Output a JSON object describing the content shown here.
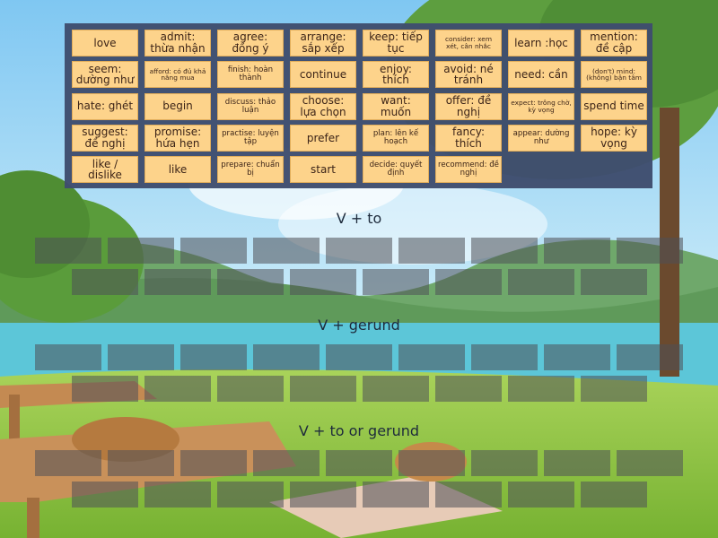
{
  "tiles": [
    "love",
    "admit: thừa nhận",
    "agree: đồng ý",
    "arrange: sắp xếp",
    "keep: tiếp tục",
    "consider: xem xét, cân nhắc",
    "learn :học",
    "mention: đề cập",
    "seem: dường như",
    "afford: có đủ khả năng mua",
    "finish: hoàn thành",
    "continue",
    "enjoy: thích",
    "avoid: né tránh",
    "need: cần",
    "(don't) mind: (không) bận tâm",
    "hate: ghét",
    "begin",
    "discuss: thảo luận",
    "choose: lựa chọn",
    "want: muốn",
    "offer: đề nghị",
    "expect: trông chờ, kỳ vọng",
    "spend time",
    "suggest: đề nghị",
    "promise: hứa hẹn",
    "practise: luyện tập",
    "prefer",
    "plan: lên kế hoạch",
    "fancy: thích",
    "appear: dường như",
    "hope: kỳ vọng",
    "like / dislike",
    "like",
    "prepare: chuẩn bị",
    "start",
    "decide: quyết định",
    "recommend: đề nghị"
  ],
  "groups": [
    {
      "heading": "V + to"
    },
    {
      "heading": "V + gerund"
    },
    {
      "heading": "V + to or gerund"
    }
  ],
  "colors": {
    "tile": "#fdd38b",
    "tray": "#3f4d6e",
    "slot": "#4e5058"
  }
}
